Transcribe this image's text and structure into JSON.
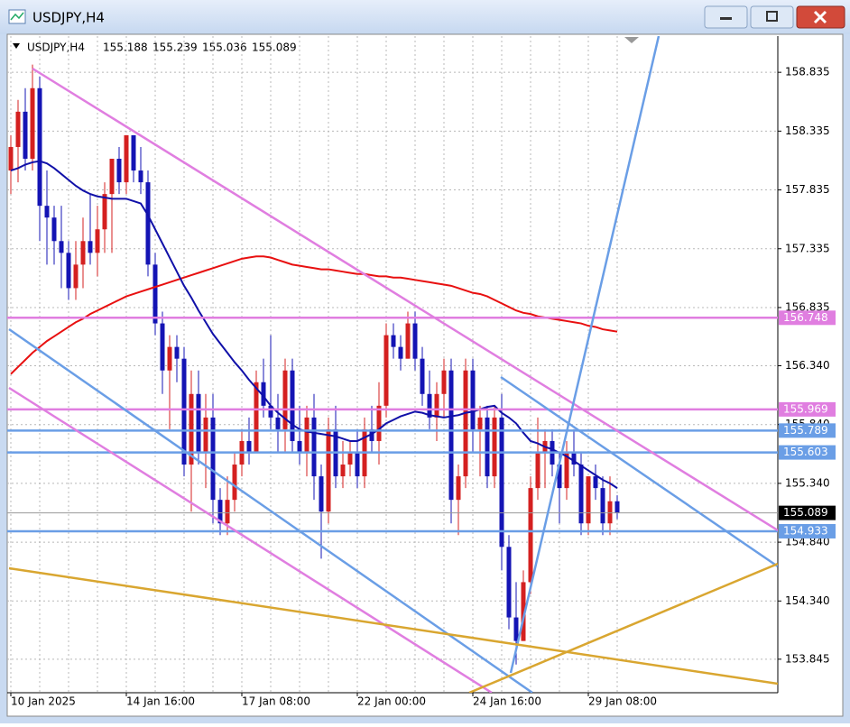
{
  "window_title": "USDJPY,H4",
  "chart_data": {
    "type": "candlestick",
    "title": "USDJPY,H4",
    "quote": [
      155.188,
      155.239,
      155.036,
      155.089
    ],
    "categories": [
      "10 Jan 2025",
      null,
      null,
      null,
      null,
      null,
      null,
      null,
      null,
      null,
      null,
      null,
      null,
      null,
      null,
      null,
      "14 Jan 16:00",
      null,
      null,
      null,
      null,
      null,
      null,
      null,
      null,
      null,
      null,
      null,
      null,
      null,
      null,
      null,
      "17 Jan 08:00",
      null,
      null,
      null,
      null,
      null,
      null,
      null,
      null,
      null,
      null,
      null,
      null,
      null,
      null,
      null,
      "22 Jan 00:00",
      null,
      null,
      null,
      null,
      null,
      null,
      null,
      null,
      null,
      null,
      null,
      null,
      null,
      null,
      null,
      "24 Jan 16:00",
      null,
      null,
      null,
      null,
      null,
      null,
      null,
      null,
      null,
      null,
      null,
      null,
      null,
      null,
      null,
      "29 Jan 08:00",
      null,
      null,
      null,
      null
    ],
    "open": [
      158.0,
      158.2,
      158.5,
      158.1,
      158.7,
      157.7,
      157.6,
      157.4,
      157.3,
      157.0,
      157.2,
      157.4,
      157.3,
      157.5,
      157.8,
      158.1,
      157.9,
      158.3,
      158.0,
      157.9,
      157.2,
      156.7,
      156.3,
      156.5,
      156.4,
      155.5,
      156.1,
      155.6,
      155.9,
      155.2,
      155.0,
      155.2,
      155.5,
      155.7,
      155.6,
      156.2,
      156.0,
      155.9,
      155.8,
      156.3,
      155.7,
      155.6,
      155.9,
      155.4,
      155.1,
      155.8,
      155.4,
      155.5,
      155.6,
      155.4,
      155.8,
      155.7,
      156.0,
      156.6,
      156.5,
      156.4,
      156.7,
      156.4,
      156.1,
      155.9,
      156.1,
      156.3,
      155.2,
      155.4,
      156.3,
      155.8,
      155.9,
      155.4,
      155.9,
      154.8,
      154.2,
      154.0,
      154.5,
      155.3,
      155.6,
      155.7,
      155.5,
      155.3,
      155.6,
      155.5,
      155.0,
      155.4,
      155.3,
      155.0,
      155.188
    ],
    "high": [
      158.3,
      158.6,
      158.7,
      158.9,
      158.8,
      158.0,
      157.7,
      157.7,
      157.4,
      157.4,
      157.6,
      157.8,
      157.7,
      157.9,
      158.1,
      158.2,
      158.3,
      158.3,
      158.2,
      158.0,
      157.3,
      156.8,
      156.6,
      156.6,
      156.5,
      156.3,
      156.3,
      156.1,
      156.1,
      155.3,
      155.4,
      155.6,
      155.8,
      155.9,
      156.3,
      156.4,
      156.6,
      156.1,
      156.4,
      156.4,
      156.0,
      156.0,
      156.1,
      155.5,
      155.9,
      156.0,
      155.7,
      155.7,
      155.8,
      155.9,
      156.0,
      156.2,
      156.7,
      156.7,
      156.6,
      156.8,
      156.8,
      156.5,
      156.3,
      156.2,
      156.4,
      156.4,
      155.5,
      156.4,
      156.4,
      156.0,
      156.0,
      156.0,
      156.1,
      154.9,
      154.5,
      154.6,
      155.4,
      155.9,
      155.8,
      155.8,
      155.6,
      155.7,
      155.8,
      155.6,
      155.4,
      155.5,
      155.4,
      155.4,
      155.239
    ],
    "low": [
      157.8,
      157.9,
      158.0,
      158.0,
      157.4,
      157.2,
      157.2,
      157.0,
      156.9,
      156.9,
      157.0,
      157.2,
      157.1,
      157.3,
      157.3,
      157.8,
      157.8,
      157.9,
      157.8,
      157.1,
      156.6,
      156.1,
      155.8,
      156.2,
      155.4,
      155.1,
      155.5,
      155.3,
      155.0,
      154.9,
      154.9,
      155.1,
      155.4,
      155.5,
      155.6,
      155.9,
      155.8,
      155.6,
      155.6,
      155.6,
      155.5,
      155.4,
      155.2,
      154.7,
      155.0,
      155.3,
      155.3,
      155.4,
      155.3,
      155.3,
      155.6,
      155.5,
      155.9,
      156.4,
      156.3,
      156.4,
      156.3,
      156.0,
      155.8,
      155.7,
      155.9,
      155.0,
      154.9,
      155.3,
      155.6,
      155.4,
      155.3,
      155.3,
      154.6,
      154.1,
      153.8,
      154.0,
      154.4,
      155.2,
      155.3,
      155.4,
      155.0,
      155.2,
      155.4,
      154.9,
      154.9,
      155.2,
      154.9,
      154.9,
      155.036
    ],
    "close": [
      158.2,
      158.5,
      158.1,
      158.7,
      157.7,
      157.6,
      157.4,
      157.3,
      157.0,
      157.2,
      157.4,
      157.3,
      157.5,
      157.8,
      158.1,
      157.9,
      158.3,
      158.0,
      157.9,
      157.2,
      156.7,
      156.3,
      156.5,
      156.4,
      155.5,
      156.1,
      155.6,
      155.9,
      155.2,
      155.0,
      155.2,
      155.5,
      155.7,
      155.6,
      156.2,
      156.0,
      155.9,
      155.8,
      156.3,
      155.7,
      155.6,
      155.9,
      155.4,
      155.1,
      155.8,
      155.4,
      155.5,
      155.6,
      155.4,
      155.8,
      155.7,
      156.0,
      156.6,
      156.5,
      156.4,
      156.7,
      156.4,
      156.1,
      155.9,
      156.1,
      156.3,
      155.2,
      155.4,
      156.3,
      155.8,
      155.9,
      155.4,
      155.9,
      154.8,
      154.2,
      154.0,
      154.5,
      155.3,
      155.6,
      155.7,
      155.5,
      155.3,
      155.6,
      155.5,
      155.0,
      155.4,
      155.3,
      155.0,
      155.188,
      155.089
    ],
    "up_color": "#d42020",
    "down_color": "#1414b4",
    "series": [
      {
        "color": "#e81010",
        "values": [
          156.27,
          156.33,
          156.39,
          156.45,
          156.5,
          156.55,
          156.59,
          156.63,
          156.67,
          156.71,
          156.74,
          156.78,
          156.81,
          156.84,
          156.87,
          156.9,
          156.93,
          156.95,
          156.97,
          156.99,
          157.01,
          157.03,
          157.05,
          157.07,
          157.09,
          157.11,
          157.13,
          157.15,
          157.17,
          157.19,
          157.21,
          157.23,
          157.25,
          157.26,
          157.27,
          157.27,
          157.26,
          157.24,
          157.22,
          157.2,
          157.19,
          157.18,
          157.17,
          157.16,
          157.16,
          157.15,
          157.14,
          157.13,
          157.12,
          157.12,
          157.11,
          157.1,
          157.1,
          157.09,
          157.09,
          157.08,
          157.07,
          157.06,
          157.05,
          157.04,
          157.03,
          157.02,
          157.0,
          156.98,
          156.96,
          156.95,
          156.93,
          156.9,
          156.87,
          156.84,
          156.81,
          156.79,
          156.78,
          156.76,
          156.75,
          156.74,
          156.73,
          156.72,
          156.71,
          156.7,
          156.68,
          156.67,
          156.65,
          156.64,
          156.63
        ]
      },
      {
        "color": "#1010a8",
        "values": [
          158.0,
          158.02,
          158.05,
          158.07,
          158.08,
          158.06,
          158.02,
          157.97,
          157.92,
          157.87,
          157.83,
          157.8,
          157.78,
          157.77,
          157.76,
          157.76,
          157.76,
          157.74,
          157.72,
          157.62,
          157.5,
          157.38,
          157.26,
          157.14,
          157.02,
          156.92,
          156.81,
          156.71,
          156.61,
          156.53,
          156.45,
          156.37,
          156.3,
          156.22,
          156.15,
          156.08,
          156.0,
          155.94,
          155.89,
          155.84,
          155.8,
          155.78,
          155.77,
          155.76,
          155.75,
          155.74,
          155.72,
          155.7,
          155.7,
          155.73,
          155.76,
          155.8,
          155.85,
          155.88,
          155.91,
          155.93,
          155.95,
          155.94,
          155.92,
          155.91,
          155.9,
          155.91,
          155.92,
          155.94,
          155.95,
          155.97,
          155.99,
          156.0,
          155.94,
          155.9,
          155.85,
          155.77,
          155.7,
          155.68,
          155.65,
          155.63,
          155.6,
          155.57,
          155.53,
          155.49,
          155.45,
          155.41,
          155.37,
          155.34,
          155.3
        ]
      }
    ],
    "levels": [
      {
        "value": 156.748,
        "color": "#e07ee0"
      },
      {
        "value": 155.969,
        "color": "#e07ee0"
      },
      {
        "value": 155.789,
        "color": "#6a9ee6"
      },
      {
        "value": 155.603,
        "color": "#6a9ee6"
      },
      {
        "value": 154.933,
        "color": "#6a9ee6"
      }
    ],
    "current_price": 155.089,
    "ylim": [
      153.56,
      159.143
    ],
    "yticks": [
      158.835,
      158.335,
      157.835,
      157.335,
      156.835,
      {
        "value": 156.34,
        "label": "156.340"
      },
      {
        "value": 155.84,
        "label": "155.840"
      },
      {
        "value": 155.34,
        "label": "155.340"
      },
      {
        "value": 154.84,
        "label": "154.840"
      },
      {
        "value": 154.34,
        "label": "154.340"
      },
      153.845
    ],
    "grid": true
  }
}
